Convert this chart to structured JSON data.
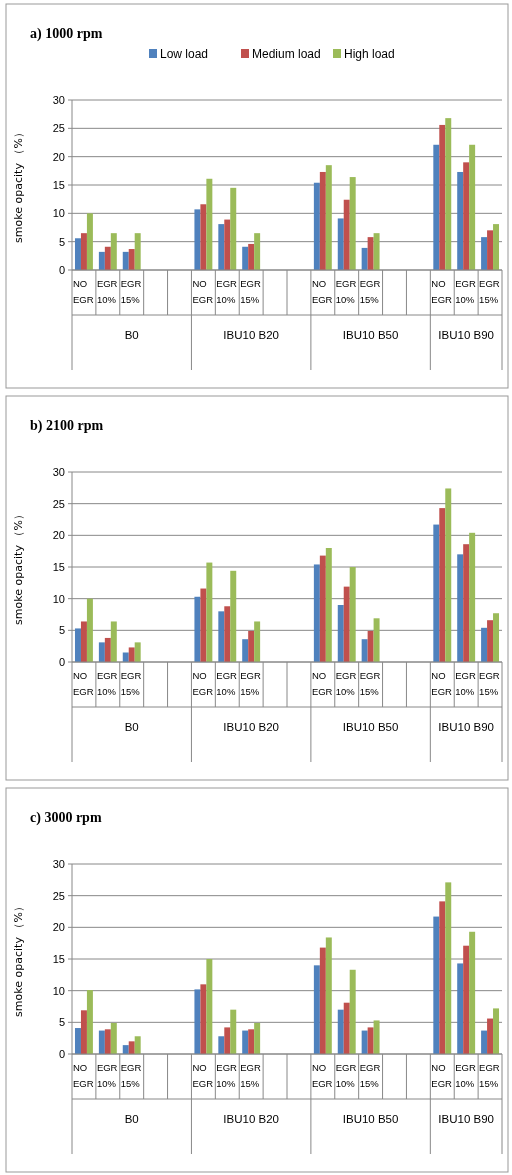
{
  "chart_data": [
    {
      "type": "bar",
      "title": "a) 1000 rpm",
      "ylabel": "smoke opacity （%）",
      "categories": [
        "NO EGR",
        "EGR 10%",
        "EGR 15%",
        null,
        null,
        "NO EGR",
        "EGR 10%",
        "EGR 15%",
        null,
        null,
        "NO EGR",
        "EGR 10%",
        "EGR 15%",
        null,
        null,
        "NO EGR",
        "EGR 10%",
        "EGR 15%"
      ],
      "annotations": [
        "B0",
        "IBU10 B20",
        "IBU10 B50",
        "IBU10 B90"
      ],
      "ylim": [
        0,
        30
      ],
      "yticks": [
        0,
        5,
        10,
        15,
        20,
        25,
        30
      ],
      "grid": "y",
      "legend": "top",
      "series": [
        {
          "name": "Low load",
          "color": "#4f81bd",
          "values": [
            5.6,
            3.2,
            3.2,
            null,
            null,
            10.7,
            8.1,
            4.1,
            null,
            null,
            15.4,
            9.1,
            3.9,
            null,
            null,
            22.1,
            17.3,
            5.8
          ]
        },
        {
          "name": "Medium load",
          "color": "#c0504d",
          "values": [
            6.5,
            4.1,
            3.7,
            null,
            null,
            11.6,
            8.9,
            4.6,
            null,
            null,
            17.3,
            12.4,
            5.8,
            null,
            null,
            25.6,
            19.0,
            7.0
          ]
        },
        {
          "name": "High load",
          "color": "#9bbb59",
          "values": [
            10,
            6.5,
            6.5,
            null,
            null,
            16.1,
            14.5,
            6.5,
            null,
            null,
            18.5,
            16.4,
            6.5,
            null,
            null,
            26.8,
            22.1,
            8.1
          ]
        }
      ]
    },
    {
      "type": "bar",
      "title": "b) 2100 rpm",
      "ylabel": "smoke opacity （%）",
      "categories": [
        "NO EGR",
        "EGR 10%",
        "EGR 15%",
        null,
        null,
        "NO EGR",
        "EGR 10%",
        "EGR 15%",
        null,
        null,
        "NO EGR",
        "EGR 10%",
        "EGR 15%",
        null,
        null,
        "NO EGR",
        "EGR 10%",
        "EGR 15%"
      ],
      "annotations": [
        "B0",
        "IBU10 B20",
        "IBU10 B50",
        "IBU10 B90"
      ],
      "ylim": [
        0,
        30
      ],
      "yticks": [
        0,
        5,
        10,
        15,
        20,
        25,
        30
      ],
      "grid": "y",
      "legend": false,
      "series": [
        {
          "color": "#4f81bd",
          "values": [
            5.3,
            3.1,
            1.5,
            null,
            null,
            10.3,
            8.0,
            3.6,
            null,
            null,
            15.4,
            9.0,
            3.6,
            null,
            null,
            21.7,
            17.0,
            5.4
          ]
        },
        {
          "color": "#c0504d",
          "values": [
            6.4,
            3.8,
            2.3,
            null,
            null,
            11.6,
            8.8,
            4.9,
            null,
            null,
            16.8,
            11.9,
            4.9,
            null,
            null,
            24.3,
            18.6,
            6.6
          ]
        },
        {
          "color": "#9bbb59",
          "values": [
            10,
            6.4,
            3.1,
            null,
            null,
            15.7,
            14.4,
            6.4,
            null,
            null,
            18.0,
            15.0,
            6.9,
            null,
            null,
            27.4,
            20.4,
            7.7
          ]
        }
      ]
    },
    {
      "type": "bar",
      "title": "c) 3000 rpm",
      "ylabel": "smoke opacity （%）",
      "categories": [
        "NO EGR",
        "EGR 10%",
        "EGR 15%",
        null,
        null,
        "NO EGR",
        "EGR 10%",
        "EGR 15%",
        null,
        null,
        "NO EGR",
        "EGR 10%",
        "EGR 15%",
        null,
        null,
        "NO EGR",
        "EGR 10%",
        "EGR 15%"
      ],
      "annotations": [
        "B0",
        "IBU10 B20",
        "IBU10 B50",
        "IBU10 B90"
      ],
      "ylim": [
        0,
        30
      ],
      "yticks": [
        0,
        5,
        10,
        15,
        20,
        25,
        30
      ],
      "grid": "y",
      "legend": false,
      "series": [
        {
          "color": "#4f81bd",
          "values": [
            4.1,
            3.7,
            1.4,
            null,
            null,
            10.2,
            2.8,
            3.7,
            null,
            null,
            14.0,
            7.0,
            3.7,
            null,
            null,
            21.7,
            14.3,
            3.7
          ]
        },
        {
          "color": "#c0504d",
          "values": [
            6.9,
            3.9,
            2.0,
            null,
            null,
            11.0,
            4.2,
            3.9,
            null,
            null,
            16.8,
            8.1,
            4.2,
            null,
            null,
            24.1,
            17.1,
            5.6
          ]
        },
        {
          "color": "#9bbb59",
          "values": [
            10.1,
            4.9,
            2.8,
            null,
            null,
            15.0,
            7.0,
            4.9,
            null,
            null,
            18.4,
            13.3,
            5.3,
            null,
            null,
            27.1,
            19.3,
            7.2
          ]
        }
      ]
    }
  ]
}
